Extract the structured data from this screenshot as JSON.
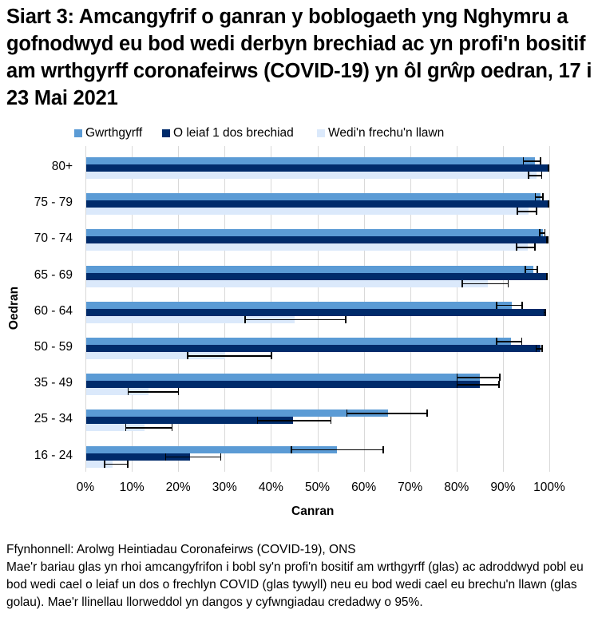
{
  "title": "Siart 3: Amcangyfrif o ganran y boblogaeth yng Nghymru a gofnodwyd eu bod wedi derbyn brechiad ac yn profi'n bositif am wrthgyrff coronafeirws (COVID-19) yn ôl grŵp oedran, 17 i 23 Mai 2021",
  "legend": [
    {
      "label": "Gwrthgyrff",
      "color": "#5b9bd5"
    },
    {
      "label": "O leiaf 1 dos brechiad",
      "color": "#002b6b"
    },
    {
      "label": "Wedi'n frechu'n llawn",
      "color": "#dbe9fb"
    }
  ],
  "axis": {
    "xlabel": "Canran",
    "ylabel": "Oedran",
    "xticks": [
      "0%",
      "10%",
      "20%",
      "30%",
      "40%",
      "50%",
      "60%",
      "70%",
      "80%",
      "90%",
      "100%"
    ]
  },
  "notes": {
    "source": "Ffynhonnell: Arolwg Heintiadau Coronafeirws (COVID-19), ONS",
    "description": "Mae'r bariau glas yn rhoi amcangyfrifon i bobl sy'n profi'n bositif am wrthgyrff (glas) ac adroddwyd pobl eu bod wedi cael o leiaf un dos o frechlyn COVID (glas tywyll) neu eu bod wedi cael eu brechu'n llawn (glas golau).  Mae'r llinellau llorweddol yn dangos y cyfwngiadau credadwy o 95%."
  },
  "chart_data": {
    "type": "bar",
    "orientation": "horizontal",
    "title": "Siart 3: Amcangyfrif o ganran y boblogaeth yng Nghymru a gofnodwyd eu bod wedi derbyn brechiad ac yn profi'n bositif am wrthgyrff coronafeirws (COVID-19) yn ôl grŵp oedran, 17 i 23 Mai 2021",
    "xlabel": "Canran",
    "ylabel": "Oedran",
    "xlim": [
      0,
      100
    ],
    "x_unit": "%",
    "grid": true,
    "legend_position": "top",
    "categories": [
      "80+",
      "75 - 79",
      "70 - 74",
      "65 - 69",
      "60 - 64",
      "50 - 59",
      "35 - 49",
      "25 - 34",
      "16 - 24"
    ],
    "series": [
      {
        "name": "Gwrthgyrff",
        "color": "#5b9bd5",
        "values": [
          96.7,
          97.9,
          98.4,
          96.3,
          91.8,
          91.5,
          84.9,
          65.0,
          54.0
        ],
        "ci_lower": [
          94.1,
          96.7,
          97.6,
          94.5,
          88.3,
          88.3,
          79.8,
          56.1,
          44.1
        ],
        "ci_upper": [
          98.1,
          98.6,
          99.0,
          97.4,
          94.1,
          94.0,
          89.3,
          73.6,
          64.2
        ]
      },
      {
        "name": "O leiaf 1 dos brechiad",
        "color": "#002b6b",
        "values": [
          99.6,
          99.6,
          99.4,
          99.3,
          98.9,
          97.9,
          84.9,
          44.5,
          22.3
        ],
        "ci_lower": [
          99.4,
          99.4,
          99.2,
          99.1,
          98.6,
          96.9,
          79.8,
          36.8,
          17.0
        ],
        "ci_upper": [
          99.8,
          99.8,
          99.6,
          99.5,
          99.2,
          98.4,
          89.1,
          52.9,
          29.1
        ]
      },
      {
        "name": "Wedi'n frechu'n llawn",
        "color": "#dbe9fb",
        "values": [
          97.0,
          95.4,
          95.1,
          86.6,
          45.0,
          29.9,
          13.5,
          12.6,
          5.7
        ],
        "ci_lower": [
          95.2,
          92.8,
          92.6,
          80.9,
          34.1,
          21.7,
          8.9,
          8.4,
          3.8
        ],
        "ci_upper": [
          98.3,
          97.2,
          96.9,
          91.1,
          56.1,
          40.1,
          20.0,
          18.6,
          9.1
        ]
      }
    ]
  }
}
